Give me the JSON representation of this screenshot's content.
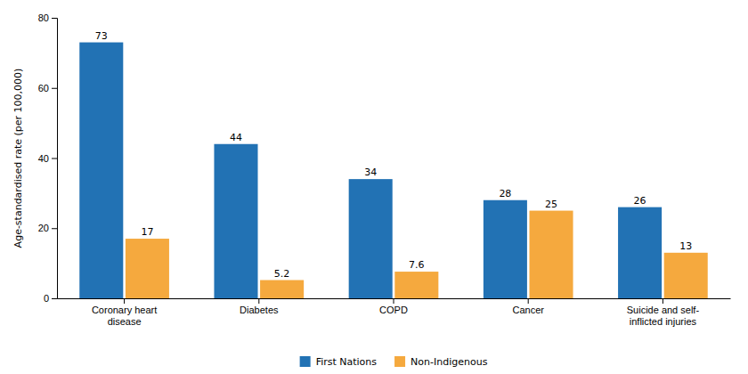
{
  "chart_data": {
    "type": "bar",
    "categories": [
      "Coronary heart\ndisease",
      "Diabetes",
      "COPD",
      "Cancer",
      "Suicide and self-\ninflicted injuries"
    ],
    "series": [
      {
        "name": "First Nations",
        "color": "#2272b4",
        "values": [
          73,
          44,
          34,
          28,
          26
        ]
      },
      {
        "name": "Non-Indigenous",
        "color": "#f5a93e",
        "values": [
          17,
          5.2,
          7.6,
          25,
          13
        ]
      }
    ],
    "ylabel": "Age-standardised rate (per 100,000)",
    "ylim": [
      0,
      80
    ],
    "yticks": [
      0,
      20,
      40,
      60,
      80
    ],
    "grid": false,
    "legend": "bottom",
    "data_labels": true
  }
}
